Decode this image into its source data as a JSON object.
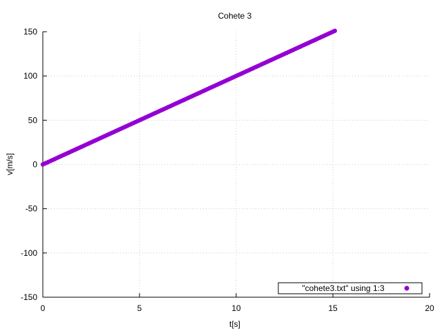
{
  "chart_data": {
    "type": "scatter",
    "title": "Cohete 3",
    "xlabel": "t[s]",
    "ylabel": "v[m/s]",
    "xlim": [
      0,
      20
    ],
    "ylim": [
      -150,
      150
    ],
    "xticks": [
      "0",
      "5",
      "10",
      "15",
      "20"
    ],
    "yticks": [
      "150",
      "100",
      "50",
      "0",
      "-50",
      "-100",
      "-150"
    ],
    "grid": true,
    "legend_position": "bottom-right",
    "series": [
      {
        "name": "\"cohete3.txt\" using 1:3",
        "color": "#9400d3",
        "x": [
          0.0,
          0.1,
          0.2,
          0.3,
          0.4,
          0.5,
          0.6,
          0.7,
          0.8,
          0.9,
          1.0,
          1.1,
          1.2,
          1.3,
          1.4,
          1.5,
          1.6,
          1.7,
          1.8,
          1.9,
          2.0,
          2.1,
          2.2,
          2.3,
          2.4,
          2.5,
          2.6,
          2.7,
          2.8,
          2.9,
          3.0,
          3.1,
          3.2,
          3.3,
          3.4,
          3.5,
          3.6,
          3.7,
          3.8,
          3.9,
          4.0,
          4.1,
          4.2,
          4.3,
          4.4,
          4.5,
          4.6,
          4.7,
          4.8,
          4.9,
          5.0,
          5.1,
          5.2,
          5.3,
          5.4,
          5.5,
          5.6,
          5.7,
          5.8,
          5.9,
          6.0,
          6.1,
          6.2,
          6.3,
          6.4,
          6.5,
          6.6,
          6.7,
          6.8,
          6.9,
          7.0,
          7.1,
          7.2,
          7.3,
          7.4,
          7.5,
          7.6,
          7.7,
          7.8,
          7.9,
          8.0,
          8.1,
          8.2,
          8.3,
          8.4,
          8.5,
          8.6,
          8.7,
          8.8,
          8.9,
          9.0,
          9.1,
          9.2,
          9.3,
          9.4,
          9.5,
          9.6,
          9.7,
          9.8,
          9.9,
          10.0,
          10.1,
          10.2,
          10.3,
          10.4,
          10.5,
          10.6,
          10.7,
          10.8,
          10.9,
          11.0,
          11.1,
          11.2,
          11.3,
          11.4,
          11.5,
          11.6,
          11.7,
          11.8,
          11.9,
          12.0,
          12.1,
          12.2,
          12.3,
          12.4,
          12.5,
          12.6,
          12.7,
          12.8,
          12.9,
          13.0,
          13.1,
          13.2,
          13.3,
          13.4,
          13.5,
          13.6,
          13.7,
          13.8,
          13.9,
          14.0,
          14.1,
          14.2,
          14.3,
          14.4,
          14.5,
          14.6,
          14.7,
          14.8,
          14.9,
          15.0,
          15.1
        ],
        "y": [
          0.0,
          1.0,
          2.0,
          3.0,
          4.0,
          5.0,
          6.0,
          7.0,
          8.0,
          9.0,
          10.0,
          11.0,
          12.0,
          13.0,
          14.0,
          15.0,
          16.0,
          17.0,
          18.0,
          19.0,
          20.0,
          21.0,
          22.0,
          23.0,
          24.0,
          25.0,
          26.0,
          27.0,
          28.0,
          29.0,
          30.0,
          31.0,
          32.0,
          33.0,
          34.0,
          35.0,
          36.0,
          37.0,
          38.0,
          39.0,
          40.0,
          41.0,
          42.0,
          43.0,
          44.0,
          45.0,
          46.0,
          47.0,
          48.0,
          49.0,
          50.0,
          51.0,
          52.0,
          53.0,
          54.0,
          55.0,
          56.0,
          57.0,
          58.0,
          59.0,
          60.0,
          61.0,
          62.0,
          63.0,
          64.0,
          65.0,
          66.0,
          67.0,
          68.0,
          69.0,
          70.0,
          71.0,
          72.0,
          73.0,
          74.0,
          75.0,
          76.0,
          77.0,
          78.0,
          79.0,
          80.0,
          81.0,
          82.0,
          83.0,
          84.0,
          85.0,
          86.0,
          87.0,
          88.0,
          89.0,
          90.0,
          91.0,
          92.0,
          93.0,
          94.0,
          95.0,
          96.0,
          97.0,
          98.0,
          99.0,
          100.0,
          101.0,
          102.0,
          103.0,
          104.0,
          105.0,
          106.0,
          107.0,
          108.0,
          109.0,
          110.0,
          111.0,
          112.0,
          113.0,
          114.0,
          115.0,
          116.0,
          117.0,
          118.0,
          119.0,
          120.0,
          121.0,
          122.0,
          123.0,
          124.0,
          125.0,
          126.0,
          127.0,
          128.0,
          129.0,
          130.0,
          131.0,
          132.0,
          133.0,
          134.0,
          135.0,
          136.0,
          137.0,
          138.0,
          139.0,
          140.0,
          141.0,
          142.0,
          143.0,
          144.0,
          145.0,
          146.0,
          147.0,
          148.0,
          149.0,
          150.0,
          151.0
        ]
      }
    ]
  }
}
